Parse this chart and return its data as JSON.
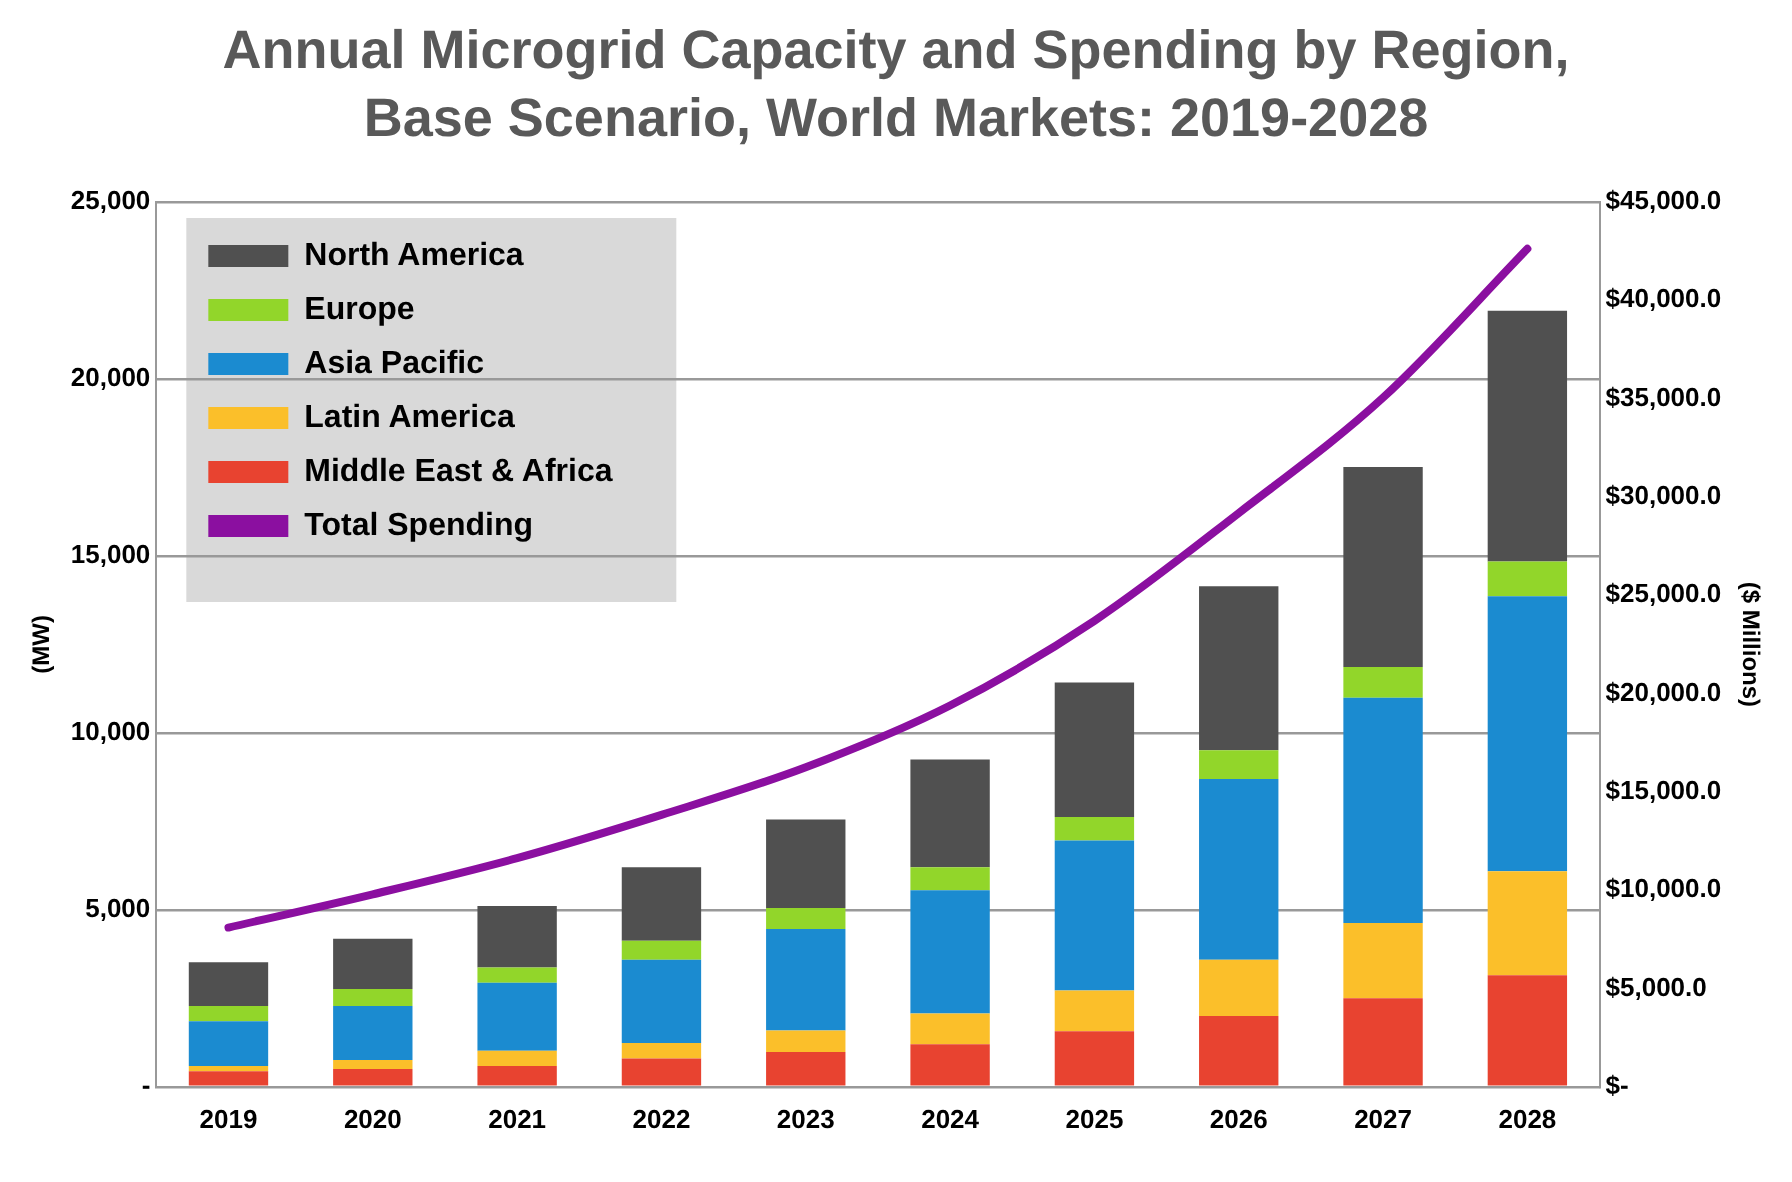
{
  "chart_data": {
    "type": "bar",
    "title": "Annual Microgrid Capacity and  Spending by Region, Base Scenario, World Markets: 2019-2028",
    "ylabel": "(MW)",
    "y2label": "($ Millions)",
    "categories": [
      "2019",
      "2020",
      "2021",
      "2022",
      "2023",
      "2024",
      "2025",
      "2026",
      "2027",
      "2028"
    ],
    "stacked": true,
    "series": [
      {
        "name": "Middle East & Africa",
        "color": "#e84330",
        "values": [
          440,
          500,
          590,
          800,
          980,
          1200,
          1570,
          2000,
          2500,
          3150
        ]
      },
      {
        "name": "Latin America",
        "color": "#fbbf2a",
        "values": [
          150,
          260,
          430,
          440,
          610,
          870,
          1150,
          1590,
          2130,
          2940
        ]
      },
      {
        "name": "Asia Pacific",
        "color": "#1b8bd0",
        "values": [
          1260,
          1520,
          1920,
          2350,
          2870,
          3480,
          4240,
          5110,
          6360,
          7770
        ]
      },
      {
        "name": "Europe",
        "color": "#92d62a",
        "values": [
          430,
          480,
          430,
          540,
          590,
          650,
          660,
          810,
          870,
          980
        ]
      },
      {
        "name": "North America",
        "color": "#505050",
        "values": [
          1240,
          1420,
          1740,
          2070,
          2500,
          3050,
          3800,
          4630,
          5650,
          7090
        ]
      },
      {
        "name": "Total Spending",
        "type": "line",
        "axis": "y2",
        "color": "#8b0fa0",
        "values": [
          8100,
          9790,
          11630,
          13830,
          16250,
          19390,
          23700,
          29180,
          35050,
          42620
        ]
      }
    ],
    "ylim": [
      0,
      25000
    ],
    "yticks": [
      {
        "value": 0,
        "label": "-"
      },
      {
        "value": 5000,
        "label": "5,000"
      },
      {
        "value": 10000,
        "label": "10,000"
      },
      {
        "value": 15000,
        "label": "15,000"
      },
      {
        "value": 20000,
        "label": "20,000"
      },
      {
        "value": 25000,
        "label": "25,000"
      }
    ],
    "y2lim": [
      0,
      45000
    ],
    "y2ticks": [
      {
        "value": 0,
        "label": "$-"
      },
      {
        "value": 5000,
        "label": "$5,000.0"
      },
      {
        "value": 10000,
        "label": "$10,000.0"
      },
      {
        "value": 15000,
        "label": "$15,000.0"
      },
      {
        "value": 20000,
        "label": "$20,000.0"
      },
      {
        "value": 25000,
        "label": "$25,000.0"
      },
      {
        "value": 30000,
        "label": "$30,000.0"
      },
      {
        "value": 35000,
        "label": "$35,000.0"
      },
      {
        "value": 40000,
        "label": "$40,000.0"
      },
      {
        "value": 45000,
        "label": "$45,000.0"
      }
    ],
    "grid": "y",
    "legend": "top left",
    "marker": "none",
    "line_style": "solid"
  }
}
